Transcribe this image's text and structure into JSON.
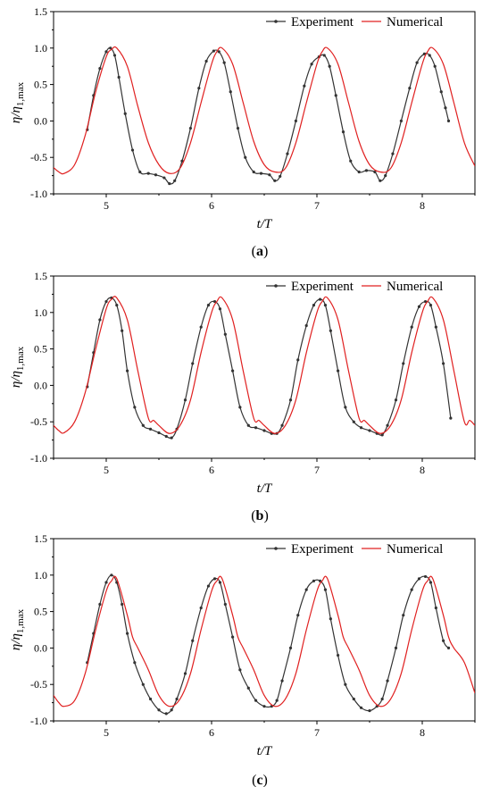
{
  "chart_data": [
    {
      "type": "line",
      "panel_label": "(a)",
      "xlabel": "t/T",
      "ylabel": "η/η1,max",
      "xlim": [
        4.5,
        8.5
      ],
      "ylim": [
        -1.0,
        1.5
      ],
      "xticks": [
        5,
        6,
        7,
        8
      ],
      "xtick_labels": [
        "5",
        "6",
        "7",
        "8"
      ],
      "yticks": [
        -1.0,
        -0.5,
        0.0,
        0.5,
        1.0,
        1.5
      ],
      "ytick_labels": [
        "-1.0",
        "-0.5",
        "0.0",
        "0.5",
        "1.0",
        "1.5"
      ],
      "legend_position": "top-right",
      "series": [
        {
          "name": "Experiment",
          "color": "#333333",
          "marker": "dot",
          "x": [
            4.82,
            4.88,
            4.94,
            5.0,
            5.04,
            5.08,
            5.12,
            5.18,
            5.25,
            5.32,
            5.4,
            5.47,
            5.55,
            5.6,
            5.65,
            5.72,
            5.8,
            5.88,
            5.95,
            6.02,
            6.07,
            6.12,
            6.18,
            6.25,
            6.32,
            6.4,
            6.47,
            6.55,
            6.6,
            6.65,
            6.72,
            6.8,
            6.88,
            6.95,
            7.02,
            7.07,
            7.12,
            7.18,
            7.25,
            7.32,
            7.4,
            7.47,
            7.55,
            7.6,
            7.65,
            7.72,
            7.8,
            7.88,
            7.95,
            8.02,
            8.07,
            8.12,
            8.18,
            8.22,
            8.25
          ],
          "y": [
            -0.12,
            0.35,
            0.72,
            0.95,
            1.0,
            0.9,
            0.6,
            0.1,
            -0.4,
            -0.7,
            -0.72,
            -0.74,
            -0.78,
            -0.86,
            -0.82,
            -0.55,
            -0.1,
            0.45,
            0.82,
            0.96,
            0.95,
            0.8,
            0.4,
            -0.1,
            -0.5,
            -0.7,
            -0.72,
            -0.74,
            -0.82,
            -0.76,
            -0.45,
            0.0,
            0.48,
            0.78,
            0.88,
            0.9,
            0.75,
            0.35,
            -0.15,
            -0.55,
            -0.7,
            -0.68,
            -0.7,
            -0.82,
            -0.75,
            -0.45,
            0.0,
            0.45,
            0.8,
            0.92,
            0.9,
            0.75,
            0.4,
            0.18,
            0.0
          ]
        },
        {
          "name": "Numerical",
          "color": "#e02020",
          "marker": "none",
          "x": [
            4.5,
            4.55,
            4.6,
            4.7,
            4.8,
            4.9,
            5.0,
            5.05,
            5.1,
            5.2,
            5.3,
            5.4,
            5.5,
            5.6,
            5.7,
            5.8,
            5.9,
            6.0,
            6.05,
            6.1,
            6.2,
            6.3,
            6.4,
            6.5,
            6.6,
            6.7,
            6.8,
            6.9,
            7.0,
            7.05,
            7.1,
            7.2,
            7.3,
            7.4,
            7.5,
            7.6,
            7.7,
            7.8,
            7.9,
            8.0,
            8.05,
            8.1,
            8.2,
            8.3,
            8.4,
            8.5
          ],
          "y": [
            -0.64,
            -0.7,
            -0.72,
            -0.6,
            -0.2,
            0.4,
            0.88,
            0.98,
            1.0,
            0.75,
            0.2,
            -0.3,
            -0.6,
            -0.72,
            -0.65,
            -0.3,
            0.25,
            0.78,
            0.95,
            1.0,
            0.78,
            0.25,
            -0.28,
            -0.6,
            -0.7,
            -0.65,
            -0.3,
            0.25,
            0.78,
            0.95,
            1.0,
            0.78,
            0.25,
            -0.28,
            -0.6,
            -0.7,
            -0.65,
            -0.3,
            0.25,
            0.78,
            0.95,
            1.0,
            0.78,
            0.25,
            -0.3,
            -0.62
          ]
        }
      ]
    },
    {
      "type": "line",
      "panel_label": "(b)",
      "xlabel": "t/T",
      "ylabel": "η/η1,max",
      "xlim": [
        4.5,
        8.5
      ],
      "ylim": [
        -1.0,
        1.5
      ],
      "xticks": [
        5,
        6,
        7,
        8
      ],
      "xtick_labels": [
        "5",
        "6",
        "7",
        "8"
      ],
      "yticks": [
        -1.0,
        -0.5,
        0.0,
        0.5,
        1.0,
        1.5
      ],
      "ytick_labels": [
        "-1.0",
        "-0.5",
        "0.0",
        "0.5",
        "1.0",
        "1.5"
      ],
      "legend_position": "top-right",
      "series": [
        {
          "name": "Experiment",
          "color": "#333333",
          "marker": "dot",
          "x": [
            4.82,
            4.88,
            4.94,
            5.0,
            5.05,
            5.1,
            5.15,
            5.2,
            5.27,
            5.35,
            5.42,
            5.5,
            5.57,
            5.62,
            5.67,
            5.75,
            5.82,
            5.9,
            5.97,
            6.03,
            6.08,
            6.13,
            6.2,
            6.27,
            6.35,
            6.42,
            6.5,
            6.57,
            6.62,
            6.67,
            6.75,
            6.82,
            6.9,
            6.97,
            7.03,
            7.08,
            7.13,
            7.2,
            7.27,
            7.35,
            7.42,
            7.5,
            7.57,
            7.62,
            7.67,
            7.75,
            7.82,
            7.9,
            7.97,
            8.03,
            8.08,
            8.13,
            8.2,
            8.27
          ],
          "y": [
            -0.02,
            0.45,
            0.9,
            1.15,
            1.2,
            1.1,
            0.75,
            0.2,
            -0.3,
            -0.55,
            -0.6,
            -0.65,
            -0.7,
            -0.72,
            -0.6,
            -0.2,
            0.3,
            0.8,
            1.1,
            1.15,
            1.05,
            0.7,
            0.2,
            -0.3,
            -0.55,
            -0.58,
            -0.62,
            -0.66,
            -0.66,
            -0.55,
            -0.2,
            0.35,
            0.82,
            1.1,
            1.18,
            1.1,
            0.75,
            0.2,
            -0.3,
            -0.5,
            -0.58,
            -0.62,
            -0.66,
            -0.68,
            -0.55,
            -0.2,
            0.3,
            0.8,
            1.08,
            1.15,
            1.1,
            0.8,
            0.3,
            -0.45
          ]
        },
        {
          "name": "Numerical",
          "color": "#e02020",
          "marker": "none",
          "x": [
            4.5,
            4.55,
            4.6,
            4.7,
            4.8,
            4.9,
            5.0,
            5.05,
            5.1,
            5.2,
            5.3,
            5.4,
            5.45,
            5.5,
            5.6,
            5.7,
            5.8,
            5.9,
            6.0,
            6.05,
            6.1,
            6.2,
            6.3,
            6.4,
            6.45,
            6.5,
            6.6,
            6.7,
            6.8,
            6.9,
            7.0,
            7.05,
            7.1,
            7.2,
            7.3,
            7.4,
            7.45,
            7.5,
            7.6,
            7.7,
            7.8,
            7.9,
            8.0,
            8.05,
            8.1,
            8.2,
            8.3,
            8.4,
            8.45,
            8.5
          ],
          "y": [
            -0.55,
            -0.62,
            -0.65,
            -0.5,
            -0.1,
            0.5,
            1.05,
            1.18,
            1.2,
            0.9,
            0.2,
            -0.45,
            -0.48,
            -0.55,
            -0.66,
            -0.55,
            -0.2,
            0.45,
            1.0,
            1.15,
            1.2,
            0.9,
            0.2,
            -0.45,
            -0.48,
            -0.55,
            -0.66,
            -0.55,
            -0.2,
            0.45,
            1.0,
            1.15,
            1.2,
            0.9,
            0.2,
            -0.45,
            -0.48,
            -0.55,
            -0.66,
            -0.55,
            -0.2,
            0.45,
            1.0,
            1.15,
            1.2,
            0.9,
            0.2,
            -0.5,
            -0.48,
            -0.55
          ]
        }
      ]
    },
    {
      "type": "line",
      "panel_label": "(c)",
      "xlabel": "t/T",
      "ylabel": "η/η1,max",
      "xlim": [
        4.5,
        8.5
      ],
      "ylim": [
        -1.0,
        1.5
      ],
      "xticks": [
        5,
        6,
        7,
        8
      ],
      "xtick_labels": [
        "5",
        "6",
        "7",
        "8"
      ],
      "yticks": [
        -1.0,
        -0.5,
        0.0,
        0.5,
        1.0,
        1.5
      ],
      "ytick_labels": [
        "-1.0",
        "-0.5",
        "0.0",
        "0.5",
        "1.0",
        "1.5"
      ],
      "legend_position": "top-right",
      "series": [
        {
          "name": "Experiment",
          "color": "#333333",
          "marker": "dot",
          "x": [
            4.82,
            4.88,
            4.94,
            5.0,
            5.05,
            5.1,
            5.15,
            5.2,
            5.27,
            5.35,
            5.42,
            5.5,
            5.57,
            5.62,
            5.67,
            5.75,
            5.82,
            5.9,
            5.97,
            6.03,
            6.08,
            6.13,
            6.2,
            6.27,
            6.35,
            6.42,
            6.5,
            6.57,
            6.62,
            6.67,
            6.75,
            6.82,
            6.9,
            6.97,
            7.03,
            7.08,
            7.13,
            7.2,
            7.27,
            7.35,
            7.42,
            7.5,
            7.57,
            7.62,
            7.67,
            7.75,
            7.82,
            7.9,
            7.97,
            8.03,
            8.08,
            8.13,
            8.2,
            8.25
          ],
          "y": [
            -0.2,
            0.2,
            0.6,
            0.9,
            1.0,
            0.9,
            0.6,
            0.2,
            -0.2,
            -0.5,
            -0.7,
            -0.85,
            -0.9,
            -0.85,
            -0.7,
            -0.35,
            0.1,
            0.55,
            0.85,
            0.95,
            0.9,
            0.6,
            0.15,
            -0.3,
            -0.55,
            -0.72,
            -0.8,
            -0.8,
            -0.72,
            -0.45,
            0.0,
            0.45,
            0.8,
            0.92,
            0.92,
            0.8,
            0.4,
            -0.1,
            -0.5,
            -0.7,
            -0.82,
            -0.86,
            -0.8,
            -0.7,
            -0.45,
            0.0,
            0.45,
            0.8,
            0.95,
            0.98,
            0.9,
            0.55,
            0.1,
            0.0
          ]
        },
        {
          "name": "Numerical",
          "color": "#e02020",
          "marker": "none",
          "x": [
            4.5,
            4.55,
            4.6,
            4.7,
            4.8,
            4.9,
            5.0,
            5.05,
            5.1,
            5.2,
            5.25,
            5.3,
            5.4,
            5.5,
            5.6,
            5.7,
            5.8,
            5.9,
            6.0,
            6.05,
            6.1,
            6.2,
            6.25,
            6.3,
            6.4,
            6.5,
            6.6,
            6.7,
            6.8,
            6.9,
            7.0,
            7.05,
            7.1,
            7.2,
            7.25,
            7.3,
            7.4,
            7.5,
            7.6,
            7.7,
            7.8,
            7.9,
            8.0,
            8.05,
            8.1,
            8.2,
            8.25,
            8.3,
            8.4,
            8.5
          ],
          "y": [
            -0.65,
            -0.75,
            -0.8,
            -0.72,
            -0.35,
            0.25,
            0.78,
            0.92,
            0.95,
            0.45,
            0.15,
            0.0,
            -0.3,
            -0.65,
            -0.8,
            -0.7,
            -0.35,
            0.25,
            0.78,
            0.92,
            0.95,
            0.45,
            0.15,
            0.0,
            -0.3,
            -0.65,
            -0.8,
            -0.7,
            -0.35,
            0.25,
            0.78,
            0.92,
            0.95,
            0.45,
            0.15,
            0.0,
            -0.3,
            -0.65,
            -0.8,
            -0.7,
            -0.35,
            0.25,
            0.78,
            0.92,
            0.95,
            0.45,
            0.15,
            0.0,
            -0.2,
            -0.62
          ]
        }
      ]
    }
  ]
}
